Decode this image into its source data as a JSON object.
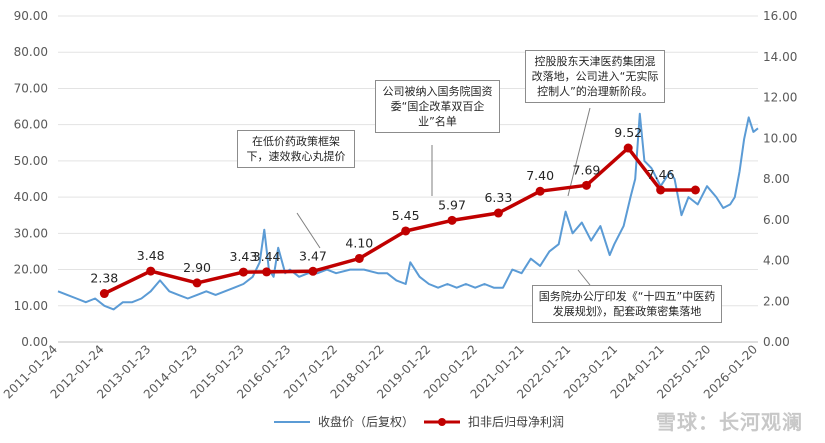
{
  "chart_data": {
    "type": "line",
    "left_axis": {
      "ylim": [
        0,
        90
      ],
      "ticks": [
        "0.00",
        "10.00",
        "20.00",
        "30.00",
        "40.00",
        "50.00",
        "60.00",
        "70.00",
        "80.00",
        "90.00"
      ]
    },
    "right_axis": {
      "ylim": [
        0,
        16
      ],
      "ticks": [
        "0.00",
        "2.00",
        "4.00",
        "6.00",
        "8.00",
        "10.00",
        "12.00",
        "14.00",
        "16.00"
      ]
    },
    "x_ticks": [
      "2011-01-24",
      "2012-01-24",
      "2013-01-23",
      "2014-01-23",
      "2015-01-23",
      "2016-01-23",
      "2017-01-22",
      "2018-01-22",
      "2019-01-22",
      "2020-01-22",
      "2021-01-21",
      "2022-01-21",
      "2023-01-21",
      "2024-01-21",
      "2025-01-20",
      "2026-01-20"
    ],
    "grid": true,
    "legend_position": "bottom",
    "series": [
      {
        "name": "收盘价（后复权）",
        "axis": "left",
        "color": "#5b9bd5",
        "x": [
          2011.0,
          2011.2,
          2011.4,
          2011.6,
          2011.8,
          2012.0,
          2012.2,
          2012.4,
          2012.6,
          2012.8,
          2013.0,
          2013.2,
          2013.4,
          2013.6,
          2013.8,
          2014.0,
          2014.2,
          2014.4,
          2014.6,
          2014.8,
          2015.0,
          2015.2,
          2015.35,
          2015.45,
          2015.55,
          2015.65,
          2015.75,
          2015.9,
          2016.0,
          2016.2,
          2016.4,
          2016.6,
          2016.8,
          2017.0,
          2017.3,
          2017.6,
          2017.9,
          2018.1,
          2018.3,
          2018.5,
          2018.6,
          2018.8,
          2019.0,
          2019.2,
          2019.4,
          2019.6,
          2019.8,
          2020.0,
          2020.2,
          2020.4,
          2020.6,
          2020.8,
          2021.0,
          2021.2,
          2021.4,
          2021.6,
          2021.8,
          2021.95,
          2022.1,
          2022.3,
          2022.5,
          2022.7,
          2022.9,
          2023.0,
          2023.2,
          2023.35,
          2023.45,
          2023.55,
          2023.65,
          2023.8,
          2024.0,
          2024.2,
          2024.3,
          2024.45,
          2024.6,
          2024.8,
          2025.0,
          2025.2,
          2025.35,
          2025.5,
          2025.6,
          2025.7,
          2025.8,
          2025.9,
          2026.0,
          2026.1
        ],
        "y": [
          14,
          13,
          12,
          11,
          12,
          10,
          9,
          11,
          11,
          12,
          14,
          17,
          14,
          13,
          12,
          13,
          14,
          13,
          14,
          15,
          16,
          18,
          22,
          31,
          20,
          18,
          26,
          19,
          20,
          18,
          19,
          19,
          20,
          19,
          20,
          20,
          19,
          19,
          17,
          16,
          22,
          18,
          16,
          15,
          16,
          15,
          16,
          15,
          16,
          15,
          15,
          20,
          19,
          23,
          21,
          25,
          27,
          36,
          30,
          33,
          28,
          32,
          24,
          27,
          32,
          40,
          45,
          63,
          50,
          48,
          43,
          47,
          45,
          35,
          40,
          38,
          43,
          40,
          37,
          38,
          40,
          47,
          56,
          62,
          58,
          59
        ]
      },
      {
        "name": "扣非后归母净利润",
        "axis": "right",
        "color": "#c00000",
        "x": [
          2012.0,
          2013.0,
          2014.0,
          2015.0,
          2015.5,
          2016.5,
          2017.5,
          2018.5,
          2019.5,
          2020.5,
          2021.4,
          2022.4,
          2023.3,
          2024.0,
          2024.75
        ],
        "y": [
          2.38,
          3.48,
          2.9,
          3.43,
          3.44,
          3.47,
          4.1,
          5.45,
          5.97,
          6.33,
          7.4,
          7.69,
          9.52,
          7.46,
          7.46
        ],
        "labels": [
          "2.38",
          "3.48",
          "2.90",
          "3.43",
          "3.44",
          "3.47",
          "4.10",
          "5.45",
          "5.97",
          "6.33",
          "7.40",
          "7.69",
          "9.52",
          "7.46",
          ""
        ]
      }
    ],
    "annotations": [
      {
        "text": "在低价药政策框架下，速效救心丸提价"
      },
      {
        "text": "公司被纳入国务院国资委“国企改革双百企业”名单"
      },
      {
        "text": "控股股东天津医药集团混改落地，公司进入“无实际控制人”的治理新阶段。"
      },
      {
        "text": "国务院办公厅印发《“十四五”中医药发展规划》，配套政策密集落地"
      }
    ]
  },
  "watermark": "雪球：长河观澜"
}
